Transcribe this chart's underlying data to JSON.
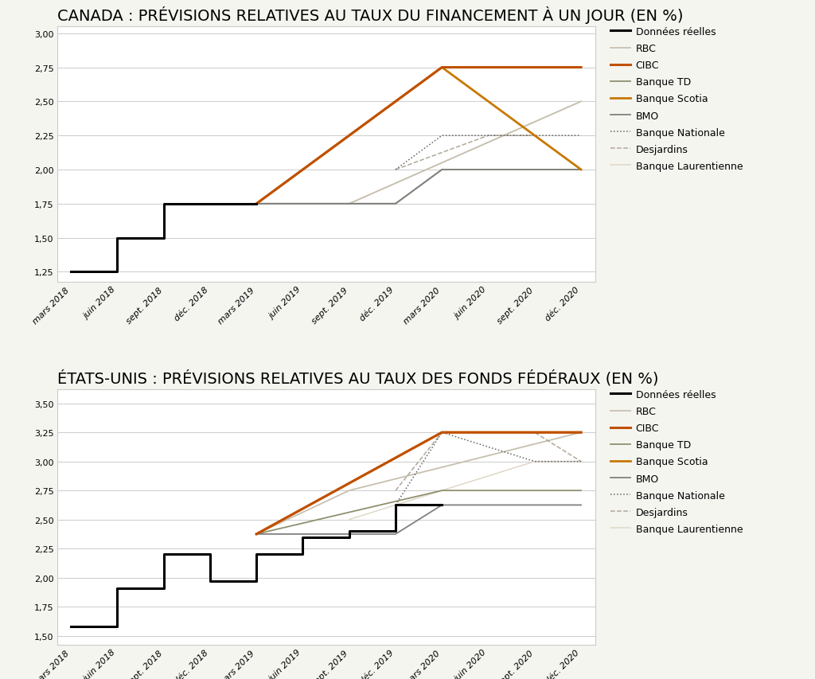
{
  "title1": "CANADA : PRÉVISIONS RELATIVES AU TAUX DU FINANCEMENT À UN JOUR (EN %)",
  "title2": "ÉTATS-UNIS : PRÉVISIONS RELATIVES AU TAUX DES FONDS FÉDÉRAUX (EN %)",
  "x_labels": [
    "mars 2018",
    "juin 2018",
    "sept. 2018",
    "déc. 2018",
    "mars 2019",
    "juin 2019",
    "sept. 2019",
    "déc. 2019",
    "mars 2020",
    "juin 2020",
    "sept. 2020",
    "déc. 2020"
  ],
  "canada": {
    "ylim": [
      1.175,
      3.05
    ],
    "yticks": [
      1.25,
      1.5,
      1.75,
      2.0,
      2.25,
      2.5,
      2.75,
      3.0
    ],
    "series": {
      "Données réelles": {
        "x": [
          0,
          1,
          1,
          2,
          2,
          3,
          3,
          4
        ],
        "y": [
          1.25,
          1.25,
          1.5,
          1.5,
          1.75,
          1.75,
          1.75,
          1.75
        ],
        "color": "#000000",
        "lw": 2.2,
        "linestyle": "solid",
        "zorder": 10
      },
      "RBC": {
        "x": [
          4,
          6,
          11
        ],
        "y": [
          1.75,
          1.75,
          2.5
        ],
        "color": "#c8c0b0",
        "lw": 1.3,
        "linestyle": "solid",
        "zorder": 4
      },
      "CIBC": {
        "x": [
          4,
          8,
          11
        ],
        "y": [
          1.75,
          2.75,
          2.75
        ],
        "color": "#c05000",
        "lw": 2.2,
        "linestyle": "solid",
        "zorder": 8
      },
      "Banque TD": {
        "x": [
          4,
          7,
          8,
          11
        ],
        "y": [
          1.75,
          1.75,
          2.0,
          2.0
        ],
        "color": "#909070",
        "lw": 1.3,
        "linestyle": "solid",
        "zorder": 6
      },
      "Banque Scotia": {
        "x": [
          4,
          8,
          10,
          11
        ],
        "y": [
          1.75,
          2.75,
          2.25,
          2.0
        ],
        "color": "#c87800",
        "lw": 2.0,
        "linestyle": "solid",
        "zorder": 7
      },
      "BMO": {
        "x": [
          4,
          7,
          8,
          11
        ],
        "y": [
          1.75,
          1.75,
          2.0,
          2.0
        ],
        "color": "#808080",
        "lw": 1.3,
        "linestyle": "solid",
        "zorder": 6
      },
      "Banque Nationale": {
        "x": [
          7,
          8,
          11
        ],
        "y": [
          2.0,
          2.25,
          2.25
        ],
        "color": "#606060",
        "lw": 1.1,
        "linestyle": "dotted",
        "zorder": 5
      },
      "Desjardins": {
        "x": [
          7,
          9,
          10,
          11
        ],
        "y": [
          2.0,
          2.25,
          2.25,
          2.0
        ],
        "color": "#b0a898",
        "lw": 1.1,
        "linestyle": "dashed",
        "zorder": 4
      },
      "Banque Laurentienne": {
        "x": [
          4,
          6,
          11
        ],
        "y": [
          1.75,
          1.75,
          2.5
        ],
        "color": "#e0d8c8",
        "lw": 1.1,
        "linestyle": "solid",
        "zorder": 3
      }
    }
  },
  "usa": {
    "ylim": [
      1.42,
      3.62
    ],
    "yticks": [
      1.5,
      1.75,
      2.0,
      2.25,
      2.5,
      2.75,
      3.0,
      3.25,
      3.5
    ],
    "series": {
      "Données réelles": {
        "x": [
          0,
          0,
          1,
          1,
          2,
          2,
          3,
          3,
          3,
          4,
          4,
          4,
          5,
          5,
          6,
          6,
          7,
          7,
          8
        ],
        "y": [
          1.58,
          1.58,
          1.58,
          1.91,
          1.91,
          2.2,
          2.2,
          1.97,
          1.97,
          1.97,
          2.2,
          2.2,
          2.2,
          2.35,
          2.35,
          2.4,
          2.4,
          2.63,
          2.63
        ],
        "color": "#000000",
        "lw": 2.2,
        "linestyle": "solid",
        "zorder": 10
      },
      "RBC": {
        "x": [
          4,
          6,
          11
        ],
        "y": [
          2.375,
          2.75,
          3.25
        ],
        "color": "#c8c0b0",
        "lw": 1.3,
        "linestyle": "solid",
        "zorder": 4
      },
      "CIBC": {
        "x": [
          4,
          8,
          11
        ],
        "y": [
          2.375,
          3.25,
          3.25
        ],
        "color": "#c05000",
        "lw": 2.2,
        "linestyle": "solid",
        "zorder": 8
      },
      "Banque TD": {
        "x": [
          4,
          8,
          11
        ],
        "y": [
          2.375,
          2.75,
          2.75
        ],
        "color": "#909070",
        "lw": 1.3,
        "linestyle": "solid",
        "zorder": 6
      },
      "Banque Scotia": {
        "x": [
          4,
          8,
          11
        ],
        "y": [
          2.375,
          3.25,
          3.25
        ],
        "color": "#c87800",
        "lw": 2.0,
        "linestyle": "solid",
        "zorder": 7
      },
      "BMO": {
        "x": [
          4,
          7,
          8,
          11
        ],
        "y": [
          2.375,
          2.375,
          2.625,
          2.625
        ],
        "color": "#808080",
        "lw": 1.3,
        "linestyle": "solid",
        "zorder": 6
      },
      "Banque Nationale": {
        "x": [
          7,
          8,
          10,
          11
        ],
        "y": [
          2.625,
          3.25,
          3.0,
          3.0
        ],
        "color": "#606060",
        "lw": 1.1,
        "linestyle": "dotted",
        "zorder": 5
      },
      "Desjardins": {
        "x": [
          7,
          8,
          10,
          11
        ],
        "y": [
          2.75,
          3.25,
          3.25,
          3.0
        ],
        "color": "#b0a898",
        "lw": 1.1,
        "linestyle": "dashed",
        "zorder": 4
      },
      "Banque Laurentienne": {
        "x": [
          6,
          8,
          10,
          11
        ],
        "y": [
          2.5,
          2.75,
          3.0,
          3.0
        ],
        "color": "#e0d8c8",
        "lw": 1.1,
        "linestyle": "solid",
        "zorder": 3
      }
    }
  },
  "legend_order": [
    "Données réelles",
    "RBC",
    "CIBC",
    "Banque TD",
    "Banque Scotia",
    "BMO",
    "Banque Nationale",
    "Desjardins",
    "Banque Laurentienne"
  ],
  "background_color": "#f5f5f0",
  "plot_bg_color": "#ffffff",
  "grid_color": "#cccccc",
  "border_color": "#cccccc",
  "title_fontsize": 14,
  "axis_fontsize": 8,
  "legend_fontsize": 9
}
